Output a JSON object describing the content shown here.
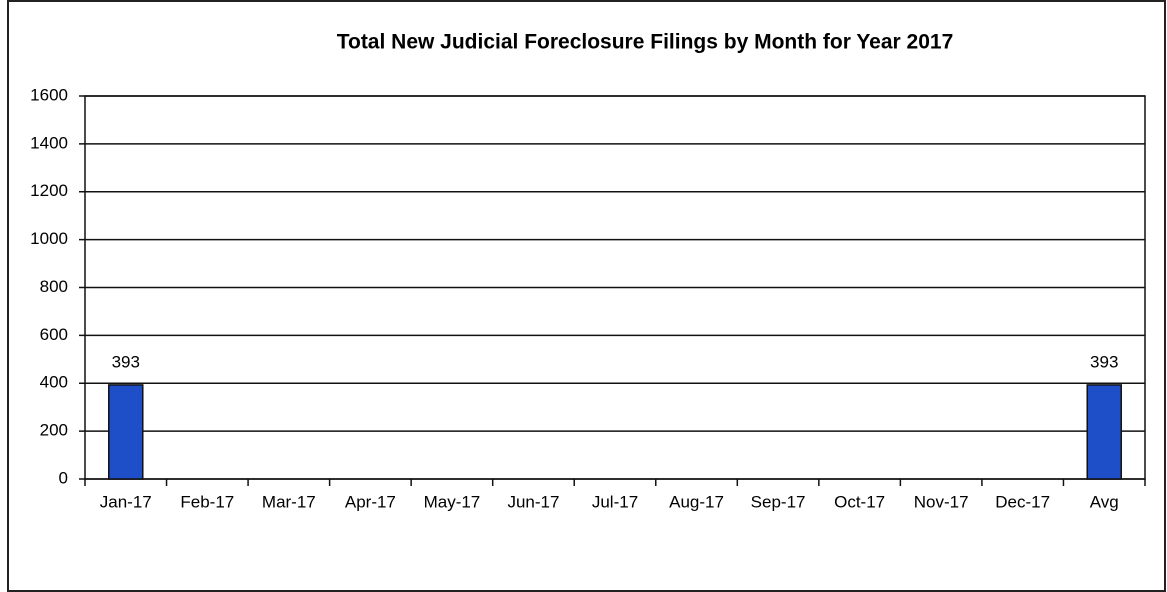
{
  "chart_data": {
    "type": "bar",
    "title": "Total New Judicial Foreclosure Filings by Month for Year 2017",
    "categories": [
      "Jan-17",
      "Feb-17",
      "Mar-17",
      "Apr-17",
      "May-17",
      "Jun-17",
      "Jul-17",
      "Aug-17",
      "Sep-17",
      "Oct-17",
      "Nov-17",
      "Dec-17",
      "Avg"
    ],
    "values": [
      393,
      null,
      null,
      null,
      null,
      null,
      null,
      null,
      null,
      null,
      null,
      null,
      393
    ],
    "color": "#1f4fc8",
    "ylim": [
      0,
      1600
    ],
    "yticks": [
      0,
      200,
      400,
      600,
      800,
      1000,
      1200,
      1400,
      1600
    ],
    "grid": true
  }
}
